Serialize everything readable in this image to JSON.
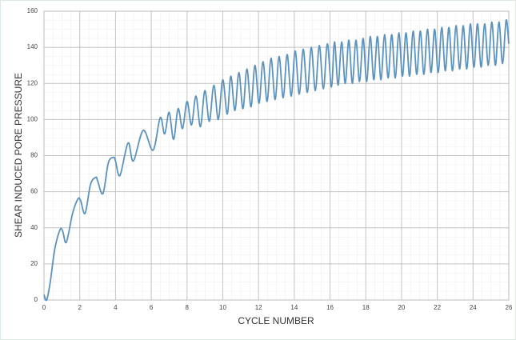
{
  "chart_data": {
    "type": "line",
    "xlabel": "CYCLE NUMBER",
    "ylabel": "SHEAR INDUCED PORE PRESSURE",
    "color": "#5b93c0",
    "grid": true,
    "xlim": [
      0,
      26
    ],
    "xticks": [
      0,
      2,
      4,
      6,
      8,
      10,
      12,
      14,
      16,
      18,
      20,
      22,
      24,
      26
    ],
    "ylim": [
      0,
      160
    ],
    "yticks": [
      0,
      20,
      40,
      60,
      80,
      100,
      120,
      140,
      160
    ],
    "x": [
      0,
      0.15,
      0.35,
      0.6,
      0.9,
      1.05,
      1.25,
      1.6,
      1.9,
      2.05,
      2.3,
      2.6,
      2.9,
      3.0,
      3.3,
      3.6,
      3.9,
      4.0,
      4.25,
      4.7,
      5.0,
      5.55,
      6.1,
      6.5,
      6.75,
      7.0,
      7.25,
      7.5,
      7.75,
      8.0,
      8.25,
      8.5,
      8.75,
      9.0,
      9.25,
      9.5,
      9.75,
      10.0,
      10.25,
      10.45,
      10.68,
      10.9,
      11.13,
      11.35,
      11.58,
      11.8,
      12.03,
      12.25,
      12.48,
      12.7,
      12.93,
      13.15,
      13.38,
      13.6,
      13.83,
      14.05,
      14.28,
      14.5,
      14.73,
      14.95,
      15.18,
      15.4,
      15.63,
      15.85,
      16.08,
      16.25,
      16.45,
      16.65,
      16.85,
      17.05,
      17.25,
      17.45,
      17.65,
      17.85,
      18.05,
      18.25,
      18.45,
      18.65,
      18.85,
      19.05,
      19.25,
      19.45,
      19.65,
      19.85,
      20.05,
      20.25,
      20.45,
      20.65,
      20.85,
      21.05,
      21.25,
      21.45,
      21.65,
      21.85,
      22.05,
      22.25,
      22.45,
      22.65,
      22.85,
      23.05,
      23.25,
      23.45,
      23.65,
      23.85,
      24.05,
      24.25,
      24.45,
      24.65,
      24.85,
      25.05,
      25.25,
      25.45,
      25.65,
      25.85,
      26
    ],
    "values": [
      3,
      0,
      10,
      28,
      39,
      38,
      32,
      48,
      56,
      55,
      48,
      64,
      68,
      66,
      59,
      76,
      79,
      77,
      69,
      87,
      77,
      94,
      83,
      101,
      92,
      104,
      89,
      106,
      95,
      110,
      97,
      113,
      96,
      116,
      99,
      119,
      100,
      122,
      103,
      124,
      105,
      126,
      106,
      128,
      107,
      130,
      109,
      132,
      110,
      134,
      111,
      135,
      112,
      136,
      113,
      138,
      114,
      139,
      115,
      140,
      116,
      141,
      117,
      142,
      118,
      143,
      119,
      143,
      120,
      144,
      120,
      144,
      121,
      145,
      121,
      146,
      122,
      146,
      122,
      147,
      123,
      147,
      123,
      148,
      124,
      148,
      124,
      149,
      125,
      149,
      125,
      150,
      126,
      150,
      126,
      151,
      127,
      151,
      127,
      152,
      128,
      152,
      128,
      153,
      129,
      153,
      129,
      153,
      130,
      154,
      130,
      154,
      131,
      155,
      142
    ]
  }
}
